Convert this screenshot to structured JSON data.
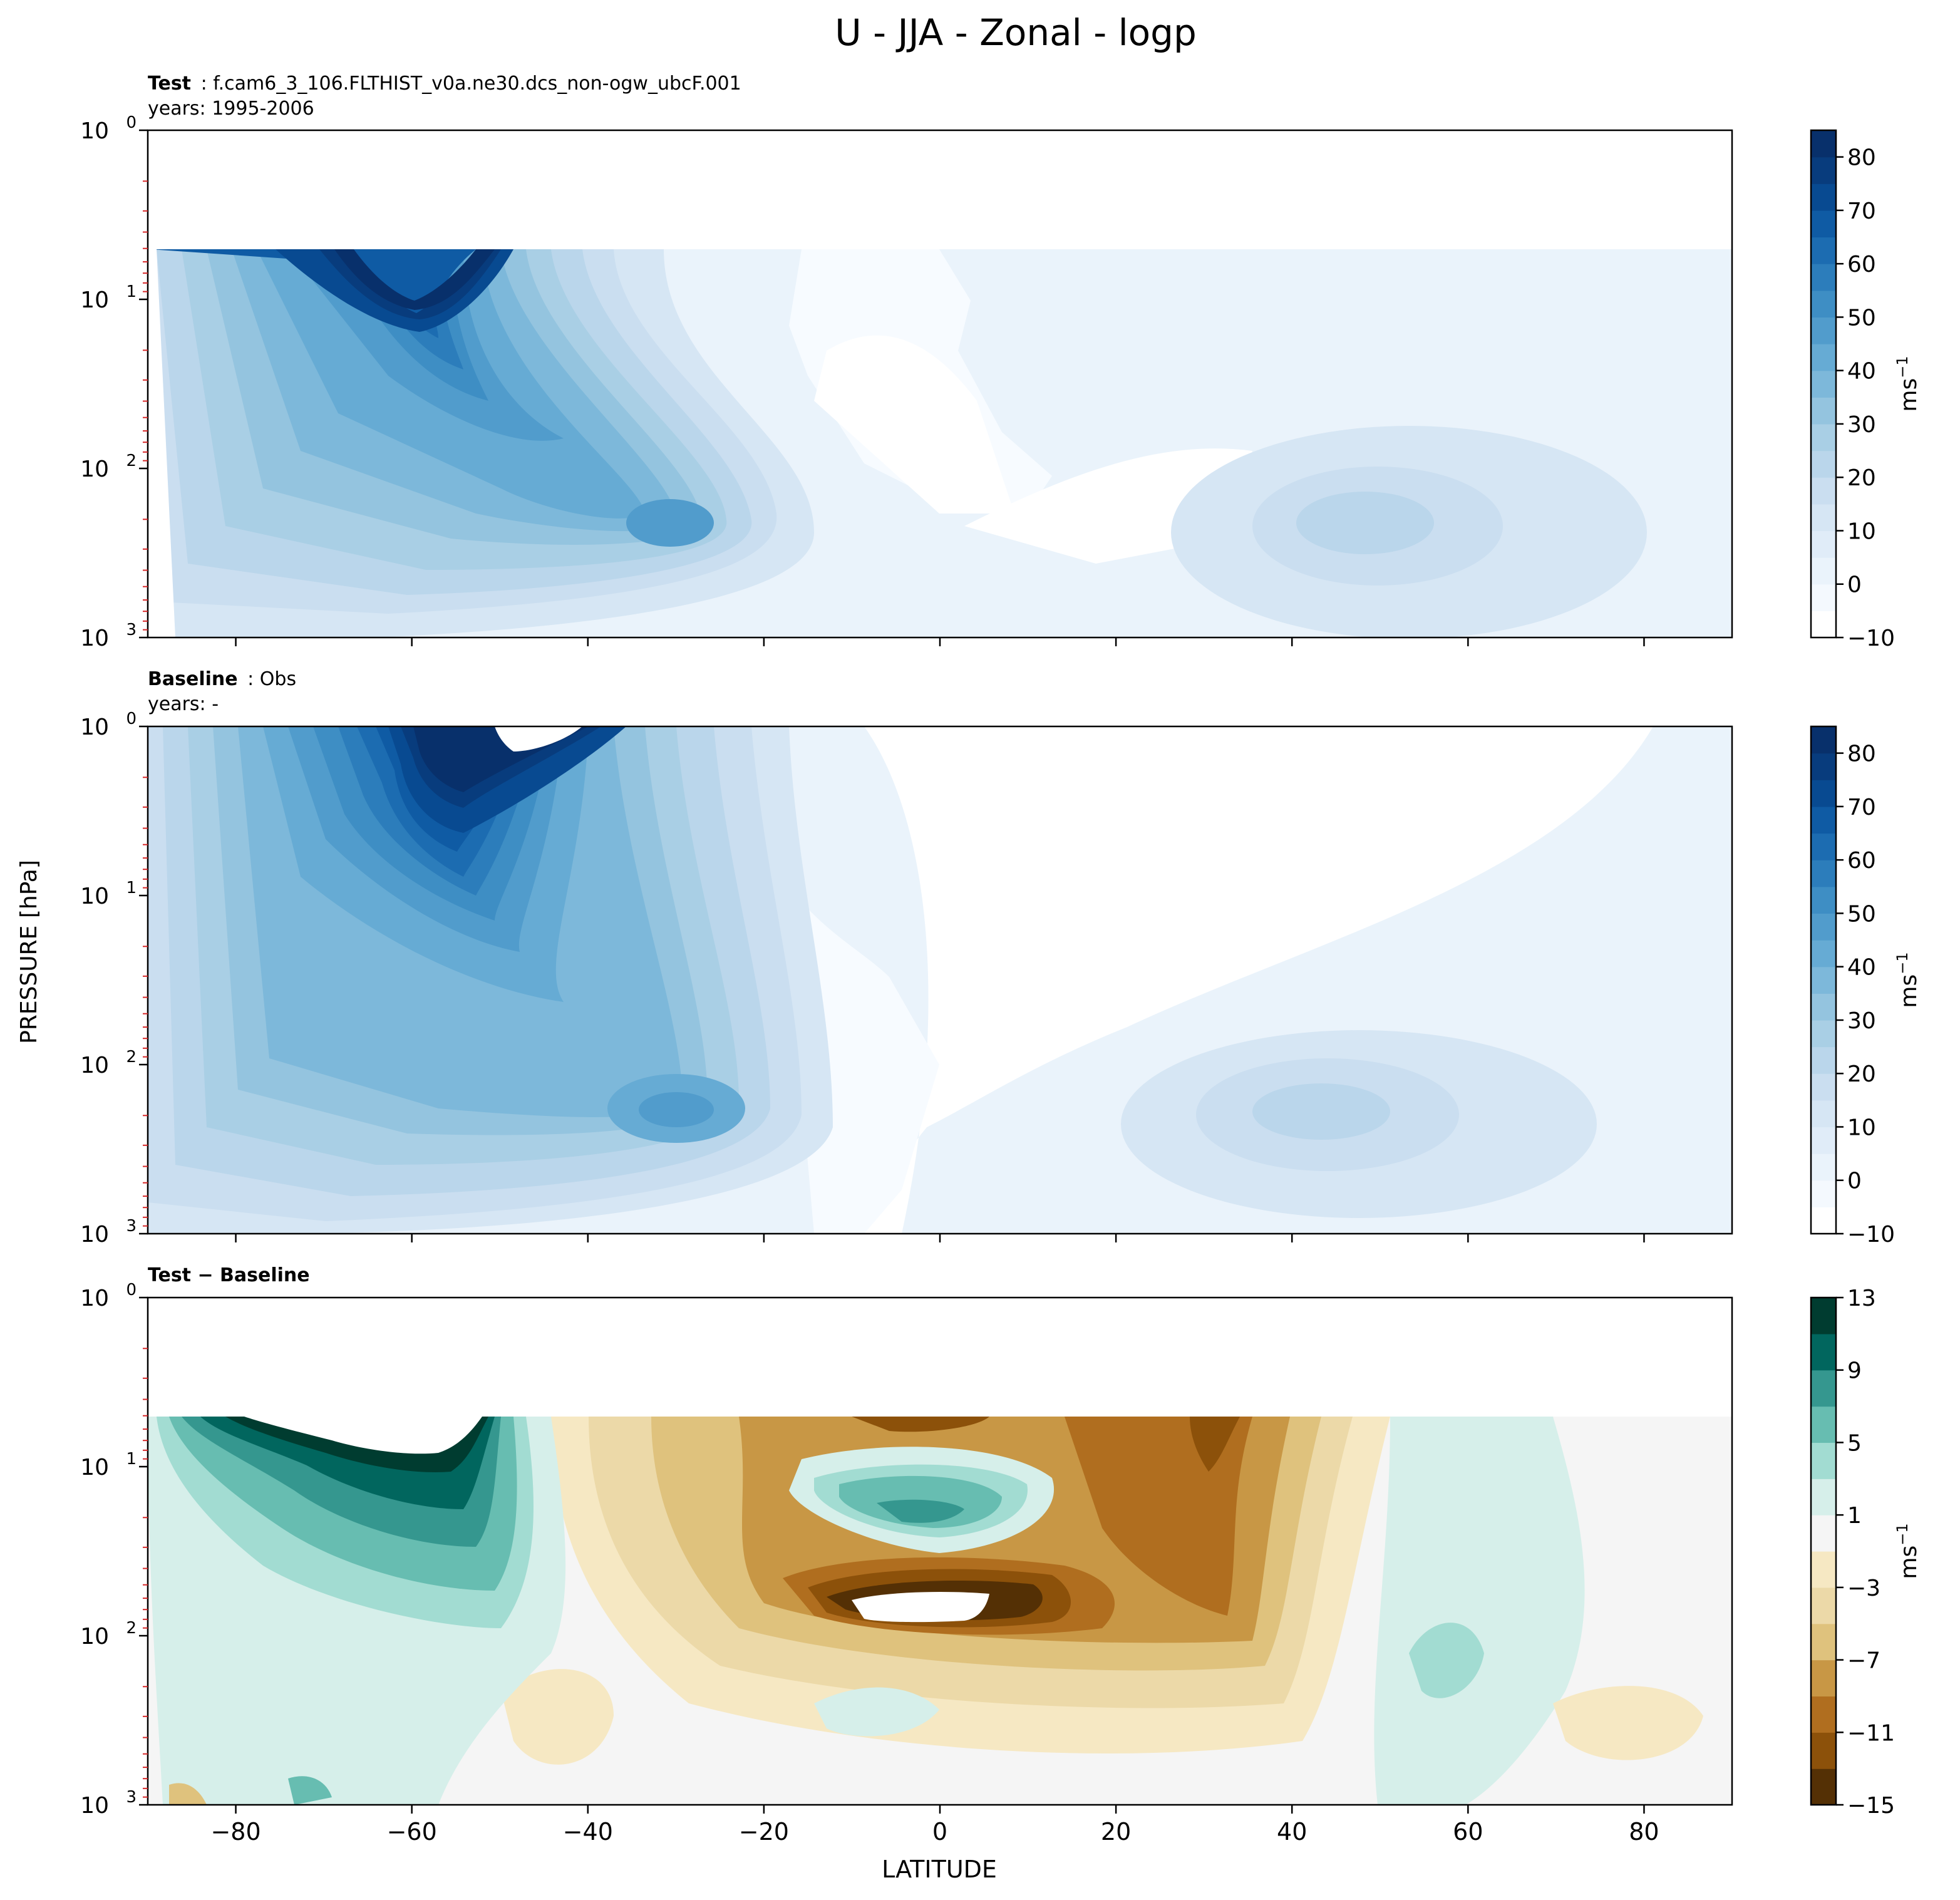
{
  "figure": {
    "title": "U - JJA - Zonal - logp",
    "ylabel": "PRESSURE [hPa]",
    "xlabel": "LATITUDE",
    "unit_label": "ms",
    "unit_exp": "−1"
  },
  "chart_data": [
    {
      "type": "contour",
      "name": "test",
      "label_bold": "Test",
      "label_text": "f.cam6_3_106.FLTHIST_v0a.ne30.dcs_non-ogw_ubcF.001",
      "years": "years: 1995-2006",
      "xlim": [
        -90,
        90
      ],
      "ylim_log_hpa": [
        1000,
        1
      ],
      "x_ticks": [
        "−80",
        "−60",
        "−40",
        "−20",
        "0",
        "20",
        "40",
        "60",
        "80"
      ],
      "y_ticks": [
        {
          "base": "10",
          "exp": "0"
        },
        {
          "base": "10",
          "exp": "1"
        },
        {
          "base": "10",
          "exp": "2"
        },
        {
          "base": "10",
          "exp": "3"
        }
      ],
      "colorbar": {
        "cmap": "Blues",
        "levels": [
          -10,
          -5,
          0,
          5,
          10,
          15,
          20,
          25,
          30,
          35,
          40,
          45,
          50,
          55,
          60,
          65,
          70,
          75,
          80,
          85
        ],
        "tick_labels": [
          "−10",
          "0",
          "10",
          "20",
          "30",
          "40",
          "50",
          "60",
          "70",
          "80"
        ],
        "colors": [
          "#ffffff",
          "#f4f9fe",
          "#eaf3fb",
          "#e0ecf8",
          "#d6e6f4",
          "#cadef0",
          "#bad6eb",
          "#a9cfe5",
          "#94c4df",
          "#7db8da",
          "#66abd4",
          "#519ccc",
          "#3e8ec4",
          "#2c7dbb",
          "#1c6cb1",
          "#0f5ba4",
          "#084a91",
          "#083c7d",
          "#08306b"
        ]
      },
      "features": [
        {
          "name": "southern-hemisphere-stratospheric-jet",
          "lat": -60,
          "p_hpa": 12,
          "u_max": 85
        },
        {
          "name": "sh-subtropical-jet",
          "lat": -30,
          "p_hpa": 200,
          "u_max": 45
        },
        {
          "name": "nh-subtropical-jet",
          "lat": 45,
          "p_hpa": 200,
          "u_max": 30
        },
        {
          "name": "model-top-mask-above-hpa",
          "p_hpa": 5
        }
      ]
    },
    {
      "type": "contour",
      "name": "baseline",
      "label_bold": "Baseline",
      "label_text": "Obs",
      "years": "years: -",
      "xlim": [
        -90,
        90
      ],
      "ylim_log_hpa": [
        1000,
        1
      ],
      "x_ticks": [
        "−80",
        "−60",
        "−40",
        "−20",
        "0",
        "20",
        "40",
        "60",
        "80"
      ],
      "y_ticks": [
        {
          "base": "10",
          "exp": "0"
        },
        {
          "base": "10",
          "exp": "1"
        },
        {
          "base": "10",
          "exp": "2"
        },
        {
          "base": "10",
          "exp": "3"
        }
      ],
      "colorbar": {
        "cmap": "Blues",
        "levels": [
          -10,
          -5,
          0,
          5,
          10,
          15,
          20,
          25,
          30,
          35,
          40,
          45,
          50,
          55,
          60,
          65,
          70,
          75,
          80,
          85
        ],
        "tick_labels": [
          "−10",
          "0",
          "10",
          "20",
          "30",
          "40",
          "50",
          "60",
          "70",
          "80"
        ],
        "colors": [
          "#ffffff",
          "#f4f9fe",
          "#eaf3fb",
          "#e0ecf8",
          "#d6e6f4",
          "#cadef0",
          "#bad6eb",
          "#a9cfe5",
          "#94c4df",
          "#7db8da",
          "#66abd4",
          "#519ccc",
          "#3e8ec4",
          "#2c7dbb",
          "#1c6cb1",
          "#0f5ba4",
          "#084a91",
          "#083c7d",
          "#08306b"
        ]
      },
      "features": [
        {
          "name": "southern-hemisphere-stratospheric-jet",
          "lat": -58,
          "p_hpa": 2,
          "u_max": 85
        },
        {
          "name": "sh-subtropical-jet",
          "lat": -30,
          "p_hpa": 200,
          "u_max": 45
        },
        {
          "name": "nh-subtropical-jet",
          "lat": 43,
          "p_hpa": 200,
          "u_max": 30
        }
      ]
    },
    {
      "type": "contour",
      "name": "difference",
      "label_bold": "Test − Baseline",
      "label_text": "",
      "years": "",
      "xlim": [
        -90,
        90
      ],
      "ylim_log_hpa": [
        1000,
        1
      ],
      "x_ticks": [
        "−80",
        "−60",
        "−40",
        "−20",
        "0",
        "20",
        "40",
        "60",
        "80"
      ],
      "y_ticks": [
        {
          "base": "10",
          "exp": "0"
        },
        {
          "base": "10",
          "exp": "1"
        },
        {
          "base": "10",
          "exp": "2"
        },
        {
          "base": "10",
          "exp": "3"
        }
      ],
      "colorbar": {
        "cmap": "BrBG",
        "levels": [
          -15,
          -13,
          -11,
          -9,
          -7,
          -5,
          -3,
          -1,
          1,
          3,
          5,
          7,
          9,
          11,
          13
        ],
        "tick_labels": [
          "−15",
          "−11",
          "−7",
          "−3",
          "1",
          "5",
          "9",
          "13"
        ],
        "colors": [
          "#543005",
          "#8c510a",
          "#b06e1f",
          "#c89745",
          "#dfc27d",
          "#ecd9a8",
          "#f6e8c3",
          "#f5f5f5",
          "#d6efea",
          "#a2dcd2",
          "#67bdb1",
          "#35978f",
          "#01665e",
          "#003c30"
        ]
      },
      "features": [
        {
          "name": "sh-high-latitude-positive-bias",
          "lat": -65,
          "p_hpa": 10,
          "du": 13
        },
        {
          "name": "tropical-negative-bias",
          "lat": 0,
          "p_hpa": 60,
          "du": -15
        },
        {
          "name": "tropical-positive-bias",
          "lat": -2,
          "p_hpa": 18,
          "du": 7
        },
        {
          "name": "nh-subtropical-negative-bias",
          "lat": 30,
          "p_hpa": 30,
          "du": -11
        },
        {
          "name": "nh-midlatitude-positive-bias",
          "lat": 57,
          "p_hpa": 200,
          "du": 5
        }
      ]
    }
  ]
}
